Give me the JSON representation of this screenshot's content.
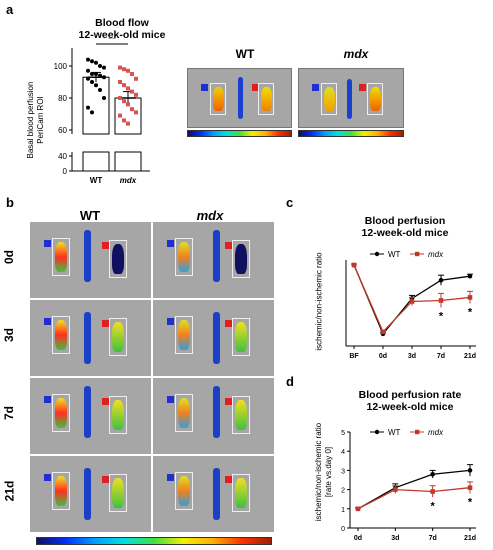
{
  "panels": {
    "a": "a",
    "b": "b",
    "c": "c",
    "d": "d"
  },
  "panel_a": {
    "title_line1": "Blood flow",
    "title_line2": "12-week-old mice",
    "ylabel_line1": "Basal blood perfusion",
    "ylabel_line2": "PeriCam ROI",
    "significance": "**",
    "image_label_wt": "WT",
    "image_label_mdx": "mdx"
  },
  "panel_b": {
    "col_wt": "WT",
    "col_mdx": "mdx",
    "rows": [
      "0d",
      "3d",
      "7d",
      "21d"
    ]
  },
  "colors": {
    "wt": "#000000",
    "mdx": "#c0392b",
    "bar_fill": "#ffffff",
    "mdx_points": "#d9534f",
    "bf_point": "#e8a0a0"
  },
  "chart_data": [
    {
      "type": "bar",
      "title": "Blood flow 12-week-old mice",
      "ylabel": "Basal blood perfusion PeriCam ROI",
      "categories": [
        "WT",
        "mdx"
      ],
      "values": [
        93,
        80
      ],
      "errors": [
        3,
        4
      ],
      "ylim": [
        0,
        110
      ],
      "axis_break": [
        40,
        60
      ],
      "ticks": [
        "0",
        "40",
        "60",
        "80",
        "100"
      ],
      "points": {
        "WT": [
          104,
          103,
          102,
          100,
          99,
          97,
          95,
          95,
          94,
          93,
          92,
          90,
          88,
          85,
          80,
          74,
          71
        ],
        "mdx": [
          99,
          98,
          97,
          95,
          92,
          90,
          88,
          86,
          84,
          82,
          80,
          78,
          76,
          73,
          71,
          69,
          66,
          64
        ]
      }
    },
    {
      "type": "line",
      "title": "Blood perfusion 12-week-old mice",
      "ylabel": "ischemic/non-ischemic ratio",
      "categories": [
        "BF",
        "0d",
        "3d",
        "7d",
        "21d"
      ],
      "ylim": [
        0.2,
        1.05
      ],
      "legend_position": "top",
      "series": [
        {
          "name": "WT",
          "values": [
            1.0,
            0.32,
            0.67,
            0.85,
            0.89
          ],
          "errors": [
            0.01,
            0.01,
            0.03,
            0.05,
            0.02
          ]
        },
        {
          "name": "mdx",
          "values": [
            1.0,
            0.34,
            0.64,
            0.65,
            0.68
          ],
          "errors": [
            0.01,
            0.01,
            0.04,
            0.07,
            0.06
          ]
        }
      ],
      "significance": [
        "",
        "",
        "",
        "*",
        "*"
      ]
    },
    {
      "type": "line",
      "title": "Blood perfusion rate 12-week-old mice",
      "ylabel": "ischemic/non-ischemic ratio [rate vs day 0]",
      "categories": [
        "0d",
        "3d",
        "7d",
        "21d"
      ],
      "ylim": [
        0,
        5
      ],
      "yticks": [
        "0",
        "1",
        "2",
        "3",
        "4",
        "5"
      ],
      "legend_position": "top",
      "series": [
        {
          "name": "WT",
          "values": [
            1.0,
            2.1,
            2.8,
            3.0
          ],
          "errors": [
            0.05,
            0.2,
            0.2,
            0.3
          ]
        },
        {
          "name": "mdx",
          "values": [
            1.0,
            2.0,
            1.9,
            2.1
          ],
          "errors": [
            0.05,
            0.2,
            0.3,
            0.3
          ]
        }
      ],
      "significance": [
        "",
        "",
        "*",
        "*"
      ]
    }
  ],
  "chart_c_text": {
    "title_line1": "Blood perfusion",
    "title_line2": "12-week-old mice",
    "ylabel": "ischemic/non-ischemic ratio",
    "legend_wt": "WT",
    "legend_mdx": "mdx"
  },
  "chart_d_text": {
    "title_line1": "Blood perfusion rate",
    "title_line2": "12-week-old mice",
    "ylabel_line1": "ischemic/non-ischemic ratio",
    "ylabel_line2": "[rate vs.day 0]",
    "legend_wt": "WT",
    "legend_mdx": "mdx"
  }
}
